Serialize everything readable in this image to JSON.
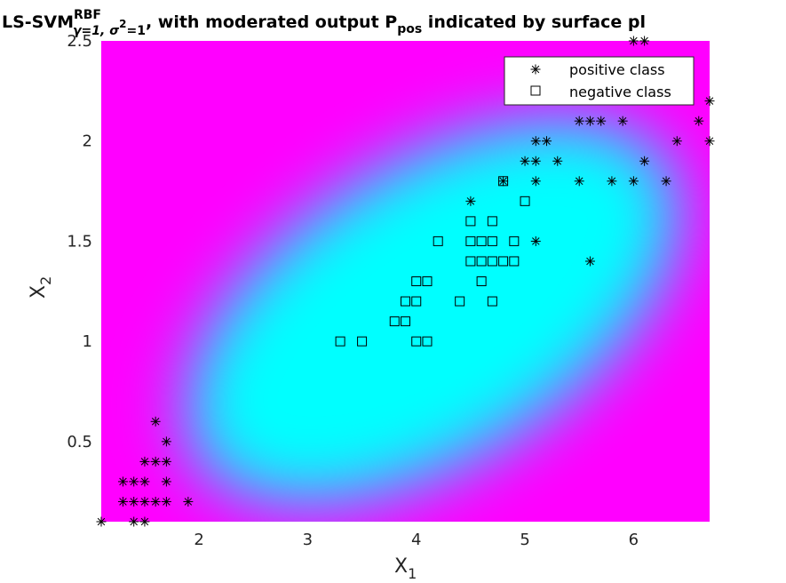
{
  "chart_data": {
    "type": "scatter",
    "title": {
      "main": "LS-SVM",
      "sup": "RBF",
      "sub_gamma": "γ=1, ",
      "sub_sigma": "σ",
      "sub_sigma_sup": "2",
      "sub_sigma_tail": "=1",
      "rest": ", with moderated output P",
      "pos_sub": "pos",
      "tail": " indicated by surface pl"
    },
    "xlabel": "X",
    "xlabel_sub": "1",
    "ylabel": "X",
    "ylabel_sub": "2",
    "xlim": [
      1.1,
      6.7
    ],
    "ylim": [
      0.1,
      2.5
    ],
    "xticks": [
      2,
      3,
      4,
      5,
      6
    ],
    "yticks": [
      0.5,
      1,
      1.5,
      2,
      2.5
    ],
    "xtick_labels": [
      "2",
      "3",
      "4",
      "5",
      "6"
    ],
    "ytick_labels": [
      "0.5",
      "1",
      "1.5",
      "2",
      "2.5"
    ],
    "surface": {
      "description": "moderated output P_pos",
      "low_color": "#00ffff",
      "high_color": "#ff00ff",
      "mid_color": "#a77bff"
    },
    "legend": {
      "placement": "top-right",
      "entries": [
        "positive class",
        "negative class"
      ]
    },
    "series": [
      {
        "name": "positive class",
        "marker": "asterisk",
        "points": [
          [
            1.1,
            0.1
          ],
          [
            1.4,
            0.1
          ],
          [
            1.5,
            0.1
          ],
          [
            1.3,
            0.2
          ],
          [
            1.4,
            0.2
          ],
          [
            1.5,
            0.2
          ],
          [
            1.6,
            0.2
          ],
          [
            1.7,
            0.2
          ],
          [
            1.9,
            0.2
          ],
          [
            1.3,
            0.3
          ],
          [
            1.4,
            0.3
          ],
          [
            1.5,
            0.3
          ],
          [
            1.7,
            0.3
          ],
          [
            1.5,
            0.4
          ],
          [
            1.6,
            0.4
          ],
          [
            1.7,
            0.4
          ],
          [
            1.7,
            0.5
          ],
          [
            1.6,
            0.6
          ],
          [
            4.5,
            1.7
          ],
          [
            5.6,
            1.4
          ],
          [
            5.1,
            1.5
          ],
          [
            4.8,
            1.8
          ],
          [
            5.1,
            1.8
          ],
          [
            5.5,
            1.8
          ],
          [
            5.8,
            1.8
          ],
          [
            6.0,
            1.8
          ],
          [
            6.3,
            1.8
          ],
          [
            5.0,
            1.9
          ],
          [
            5.1,
            1.9
          ],
          [
            5.3,
            1.9
          ],
          [
            6.1,
            1.9
          ],
          [
            5.1,
            2.0
          ],
          [
            5.2,
            2.0
          ],
          [
            6.4,
            2.0
          ],
          [
            6.7,
            2.0
          ],
          [
            5.5,
            2.1
          ],
          [
            5.6,
            2.1
          ],
          [
            5.7,
            2.1
          ],
          [
            5.9,
            2.1
          ],
          [
            6.6,
            2.1
          ],
          [
            6.7,
            2.2
          ],
          [
            6.0,
            2.5
          ],
          [
            6.1,
            2.5
          ]
        ]
      },
      {
        "name": "negative class",
        "marker": "square",
        "points": [
          [
            3.3,
            1.0
          ],
          [
            3.5,
            1.0
          ],
          [
            4.0,
            1.0
          ],
          [
            4.1,
            1.0
          ],
          [
            3.8,
            1.1
          ],
          [
            3.9,
            1.1
          ],
          [
            3.9,
            1.2
          ],
          [
            4.0,
            1.2
          ],
          [
            4.4,
            1.2
          ],
          [
            4.7,
            1.2
          ],
          [
            4.0,
            1.3
          ],
          [
            4.1,
            1.3
          ],
          [
            4.6,
            1.3
          ],
          [
            4.5,
            1.4
          ],
          [
            4.6,
            1.4
          ],
          [
            4.7,
            1.4
          ],
          [
            4.8,
            1.4
          ],
          [
            4.9,
            1.4
          ],
          [
            4.2,
            1.5
          ],
          [
            4.5,
            1.5
          ],
          [
            4.6,
            1.5
          ],
          [
            4.7,
            1.5
          ],
          [
            4.9,
            1.5
          ],
          [
            4.5,
            1.6
          ],
          [
            4.7,
            1.6
          ],
          [
            5.0,
            1.7
          ],
          [
            4.8,
            1.8
          ]
        ]
      }
    ]
  }
}
